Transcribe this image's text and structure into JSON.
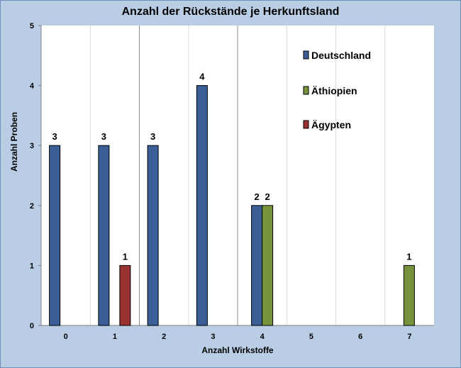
{
  "chart_data": {
    "type": "bar",
    "title": "Anzahl der Rückstände je Herkunftsland",
    "xlabel": "Anzahl Wirkstoffe",
    "ylabel": "Anzahl Proben",
    "categories": [
      "0",
      "1",
      "2",
      "3",
      "4",
      "5",
      "6",
      "7"
    ],
    "ylim": [
      0,
      5
    ],
    "yticks": [
      "0",
      "1",
      "2",
      "3",
      "4",
      "5"
    ],
    "grid": "vertical",
    "legend_position": "top-right",
    "series": [
      {
        "name": "Deutschland",
        "color": "#3a5f96",
        "values": [
          3,
          3,
          3,
          4,
          2,
          null,
          null,
          null
        ]
      },
      {
        "name": "Äthiopien",
        "color": "#77933c",
        "values": [
          null,
          null,
          null,
          null,
          2,
          null,
          null,
          1
        ]
      },
      {
        "name": "Ägypten",
        "color": "#9b3232",
        "values": [
          null,
          1,
          null,
          null,
          null,
          null,
          null,
          null
        ]
      }
    ]
  }
}
